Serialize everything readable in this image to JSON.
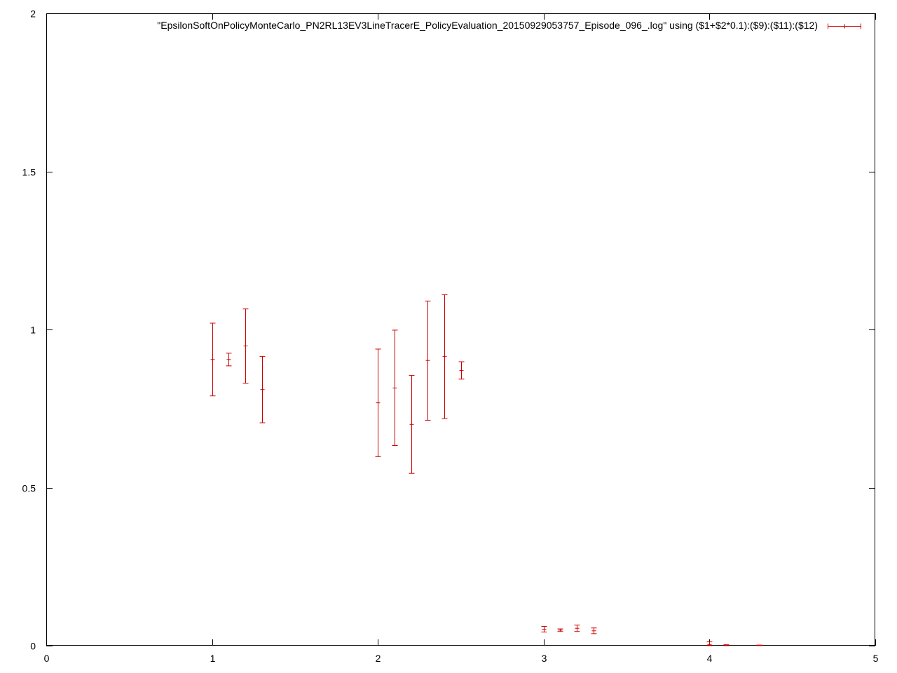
{
  "chart_data": {
    "type": "errorbar",
    "title": "",
    "xlabel": "",
    "ylabel": "",
    "xlim": [
      0,
      5
    ],
    "ylim": [
      0,
      2
    ],
    "xticks": [
      0,
      1,
      2,
      3,
      4,
      5
    ],
    "yticks": [
      0,
      0.5,
      1,
      1.5,
      2
    ],
    "xtick_labels": [
      "0",
      "1",
      "2",
      "3",
      "4",
      "5"
    ],
    "ytick_labels": [
      "0",
      "0.5",
      "1",
      "1.5",
      "2"
    ],
    "grid": false,
    "legend_position": "top-right",
    "series": [
      {
        "name": "\"EpsilonSoftOnPolicyMonteCarlo_PN2RL13EV3LineTracerE_PolicyEvaluation_20150929053757_Episode_096_.log\" using ($1+$2*0.1):($9):($11):($12)",
        "color": "#cc0000",
        "points": [
          {
            "x": 1.0,
            "y": 0.905,
            "ylow": 0.79,
            "yhigh": 1.02
          },
          {
            "x": 1.1,
            "y": 0.905,
            "ylow": 0.885,
            "yhigh": 0.925
          },
          {
            "x": 1.2,
            "y": 0.948,
            "ylow": 0.83,
            "yhigh": 1.065
          },
          {
            "x": 1.3,
            "y": 0.81,
            "ylow": 0.705,
            "yhigh": 0.915
          },
          {
            "x": 2.0,
            "y": 0.768,
            "ylow": 0.598,
            "yhigh": 0.938
          },
          {
            "x": 2.1,
            "y": 0.815,
            "ylow": 0.633,
            "yhigh": 0.998
          },
          {
            "x": 2.2,
            "y": 0.7,
            "ylow": 0.545,
            "yhigh": 0.855
          },
          {
            "x": 2.3,
            "y": 0.902,
            "ylow": 0.713,
            "yhigh": 1.09
          },
          {
            "x": 2.4,
            "y": 0.915,
            "ylow": 0.718,
            "yhigh": 1.11
          },
          {
            "x": 2.5,
            "y": 0.87,
            "ylow": 0.843,
            "yhigh": 0.898
          },
          {
            "x": 3.0,
            "y": 0.052,
            "ylow": 0.043,
            "yhigh": 0.061
          },
          {
            "x": 3.1,
            "y": 0.049,
            "ylow": 0.045,
            "yhigh": 0.053
          },
          {
            "x": 3.2,
            "y": 0.055,
            "ylow": 0.045,
            "yhigh": 0.065
          },
          {
            "x": 3.3,
            "y": 0.047,
            "ylow": 0.038,
            "yhigh": 0.056
          },
          {
            "x": 4.0,
            "y": 0.003,
            "ylow": 0.0,
            "yhigh": 0.012
          },
          {
            "x": 4.1,
            "y": 0.0,
            "ylow": 0.0,
            "yhigh": 0.003
          },
          {
            "x": 4.3,
            "y": 0.0,
            "ylow": 0.0,
            "yhigh": 0.002
          }
        ]
      }
    ]
  }
}
